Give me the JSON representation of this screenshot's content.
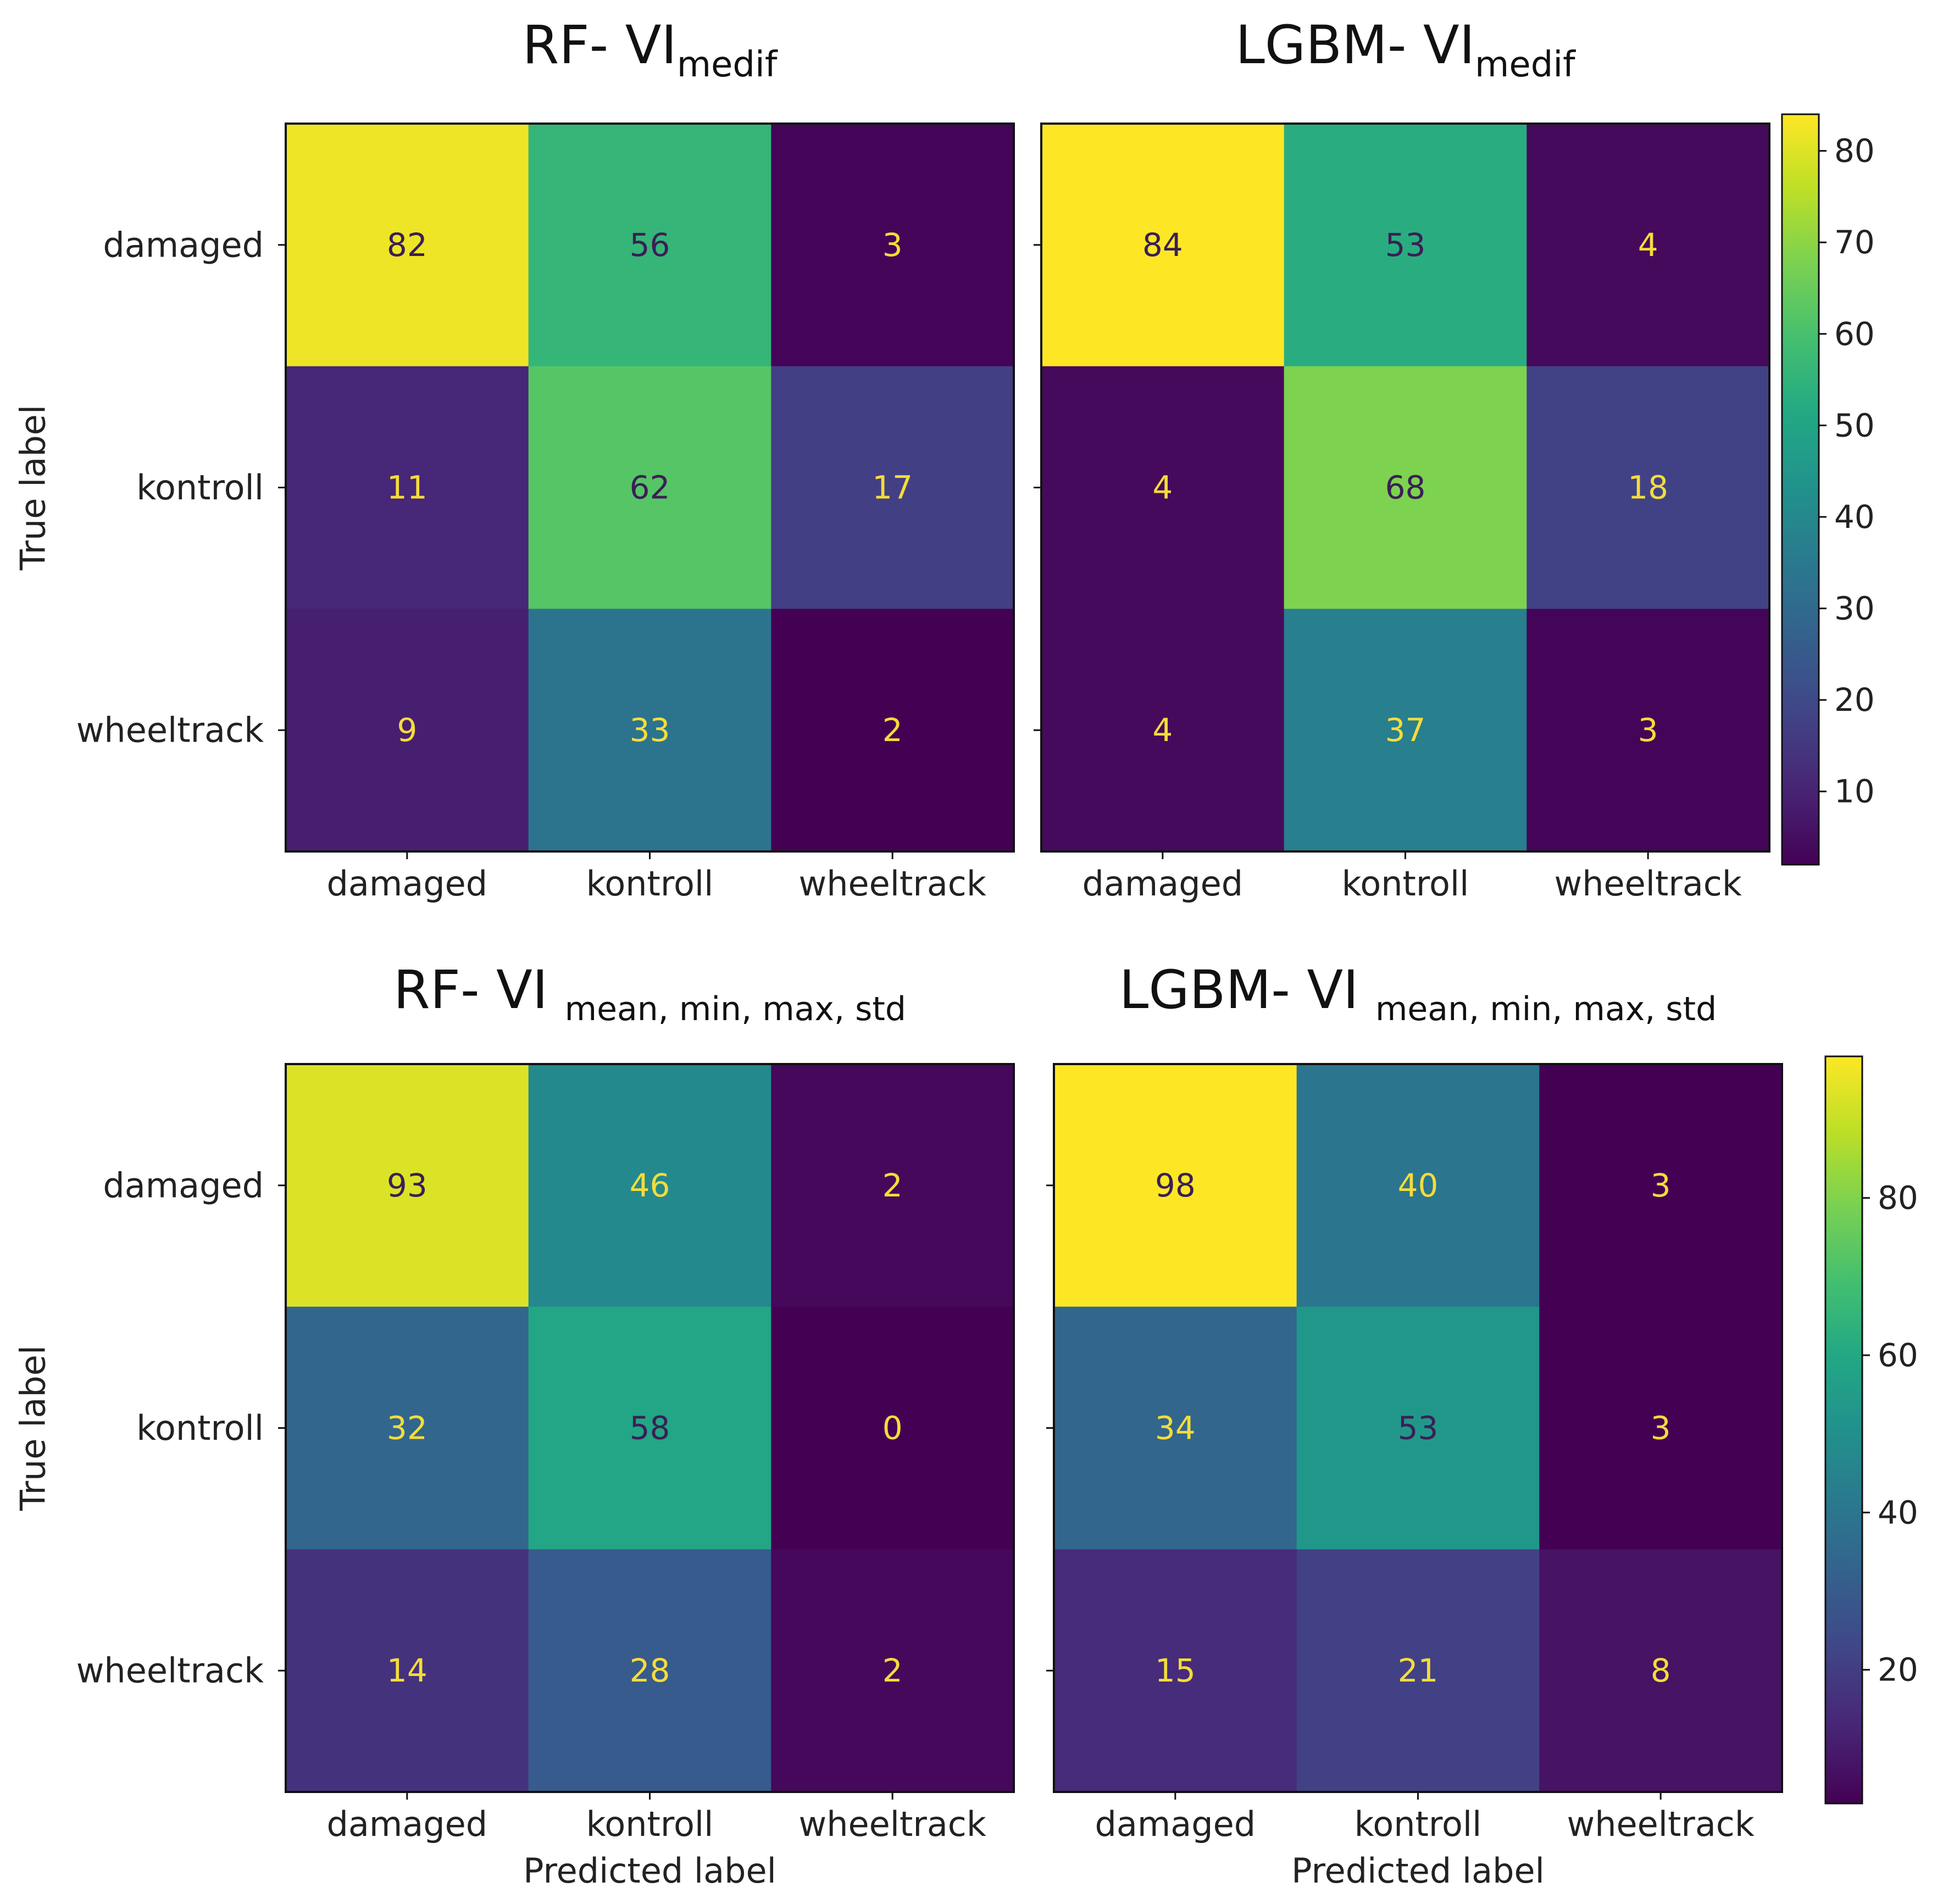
{
  "chart_data": {
    "type": "heatmap",
    "colormap": "viridis",
    "panels": [
      {
        "title_main": "RF- VI",
        "title_sub": "medif",
        "sub_style": "subscript",
        "ylabel": "True label",
        "xlabel": "",
        "row_labels": [
          "damaged",
          "kontroll",
          "wheeltrack"
        ],
        "col_labels": [
          "damaged",
          "kontroll",
          "wheeltrack"
        ],
        "values": [
          [
            82,
            56,
            3
          ],
          [
            11,
            62,
            17
          ],
          [
            9,
            33,
            2
          ]
        ],
        "vmin": 2,
        "vmax": 84
      },
      {
        "title_main": "LGBM- VI",
        "title_sub": "medif",
        "sub_style": "subscript",
        "ylabel": "",
        "xlabel": "",
        "row_labels": [
          "damaged",
          "kontroll",
          "wheeltrack"
        ],
        "col_labels": [
          "damaged",
          "kontroll",
          "wheeltrack"
        ],
        "values": [
          [
            84,
            53,
            4
          ],
          [
            4,
            68,
            18
          ],
          [
            4,
            37,
            3
          ]
        ],
        "vmin": 2,
        "vmax": 84
      },
      {
        "title_main": "RF- VI",
        "title_sub": "mean, min, max, std",
        "sub_style": "small",
        "ylabel": "True label",
        "xlabel": "Predicted label",
        "row_labels": [
          "damaged",
          "kontroll",
          "wheeltrack"
        ],
        "col_labels": [
          "damaged",
          "kontroll",
          "wheeltrack"
        ],
        "values": [
          [
            93,
            46,
            2
          ],
          [
            32,
            58,
            0
          ],
          [
            14,
            28,
            2
          ]
        ],
        "vmin": 0,
        "vmax": 98
      },
      {
        "title_main": "LGBM- VI",
        "title_sub": "mean, min, max, std",
        "sub_style": "small",
        "ylabel": "",
        "xlabel": "Predicted label",
        "row_labels": [
          "damaged",
          "kontroll",
          "wheeltrack"
        ],
        "col_labels": [
          "damaged",
          "kontroll",
          "wheeltrack"
        ],
        "values": [
          [
            98,
            40,
            3
          ],
          [
            34,
            53,
            3
          ],
          [
            15,
            21,
            8
          ]
        ],
        "vmin": 3,
        "vmax": 98
      }
    ],
    "colorbars": [
      {
        "vmin": 2,
        "vmax": 84,
        "ticks": [
          10,
          20,
          30,
          40,
          50,
          60,
          70,
          80
        ]
      },
      {
        "vmin": 3,
        "vmax": 98,
        "ticks": [
          20,
          40,
          60,
          80
        ]
      }
    ]
  }
}
